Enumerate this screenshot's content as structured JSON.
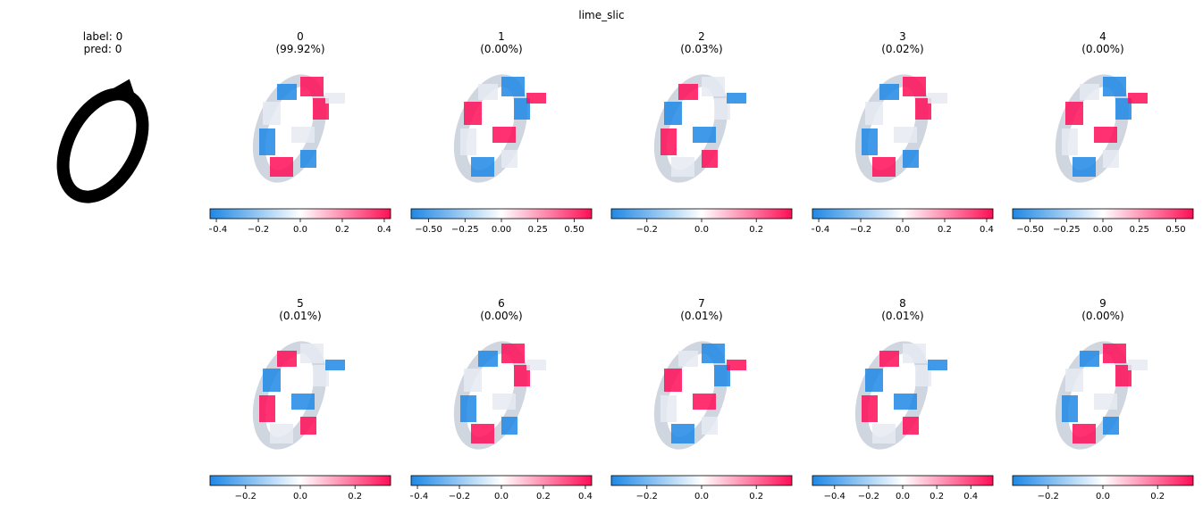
{
  "figure": {
    "title": "lime_slic"
  },
  "input": {
    "label_text": "label: 0",
    "pred_text": "pred: 0",
    "digit": 0
  },
  "colors": {
    "negative": "#1e88e5",
    "neutral": "#ffffff",
    "positive": "#ff0d57",
    "stroke": "#000000"
  },
  "chart_data": {
    "type": "heatmap",
    "title": "lime_slic",
    "panels": [
      {
        "class": "0",
        "probability": "(99.92%)",
        "colorbar": {
          "min": -0.43,
          "max": 0.43,
          "ticks": [
            -0.4,
            -0.2,
            0.0,
            0.2,
            0.4
          ],
          "tick_labels": [
            "−0.4",
            "−0.2",
            "0.0",
            "0.2",
            "0.4"
          ]
        }
      },
      {
        "class": "1",
        "probability": "(0.00%)",
        "colorbar": {
          "min": -0.62,
          "max": 0.62,
          "ticks": [
            -0.5,
            -0.25,
            0.0,
            0.25,
            0.5
          ],
          "tick_labels": [
            "−0.50",
            "−0.25",
            "0.00",
            "0.25",
            "0.50"
          ]
        }
      },
      {
        "class": "2",
        "probability": "(0.03%)",
        "colorbar": {
          "min": -0.33,
          "max": 0.33,
          "ticks": [
            -0.2,
            0.0,
            0.2
          ],
          "tick_labels": [
            "−0.2",
            "0.0",
            "0.2"
          ]
        }
      },
      {
        "class": "3",
        "probability": "(0.02%)",
        "colorbar": {
          "min": -0.43,
          "max": 0.43,
          "ticks": [
            -0.4,
            -0.2,
            0.0,
            0.2,
            0.4
          ],
          "tick_labels": [
            "−0.4",
            "−0.2",
            "0.0",
            "0.2",
            "0.4"
          ]
        }
      },
      {
        "class": "4",
        "probability": "(0.00%)",
        "colorbar": {
          "min": -0.62,
          "max": 0.62,
          "ticks": [
            -0.5,
            -0.25,
            0.0,
            0.25,
            0.5
          ],
          "tick_labels": [
            "−0.50",
            "−0.25",
            "0.00",
            "0.25",
            "0.50"
          ]
        }
      },
      {
        "class": "5",
        "probability": "(0.01%)",
        "colorbar": {
          "min": -0.33,
          "max": 0.33,
          "ticks": [
            -0.2,
            0.0,
            0.2
          ],
          "tick_labels": [
            "−0.2",
            "0.0",
            "0.2"
          ]
        }
      },
      {
        "class": "6",
        "probability": "(0.00%)",
        "colorbar": {
          "min": -0.43,
          "max": 0.43,
          "ticks": [
            -0.4,
            -0.2,
            0.0,
            0.2,
            0.4
          ],
          "tick_labels": [
            "−0.4",
            "−0.2",
            "0.0",
            "0.2",
            "0.4"
          ]
        }
      },
      {
        "class": "7",
        "probability": "(0.01%)",
        "colorbar": {
          "min": -0.33,
          "max": 0.33,
          "ticks": [
            -0.2,
            0.0,
            0.2
          ],
          "tick_labels": [
            "−0.2",
            "0.0",
            "0.2"
          ]
        }
      },
      {
        "class": "8",
        "probability": "(0.01%)",
        "colorbar": {
          "min": -0.53,
          "max": 0.53,
          "ticks": [
            -0.4,
            -0.2,
            0.0,
            0.2,
            0.4
          ],
          "tick_labels": [
            "−0.4",
            "−0.2",
            "0.0",
            "0.2",
            "0.4"
          ]
        }
      },
      {
        "class": "9",
        "probability": "(0.00%)",
        "colorbar": {
          "min": -0.33,
          "max": 0.33,
          "ticks": [
            -0.2,
            0.0,
            0.2
          ],
          "tick_labels": [
            "−0.2",
            "0.0",
            "0.2"
          ]
        }
      }
    ]
  }
}
